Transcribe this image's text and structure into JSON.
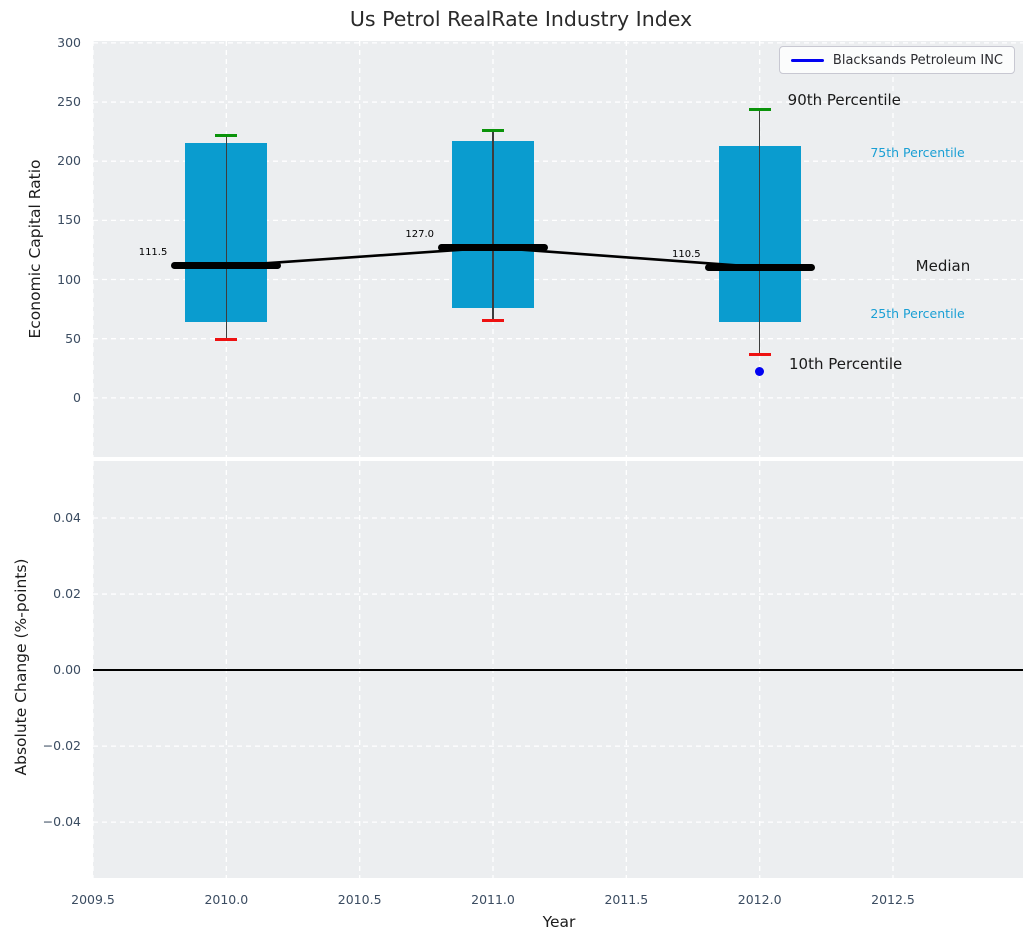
{
  "figure": {
    "title": "Us Petrol RealRate Industry Index",
    "colors": {
      "figure_bg": "#ffffff",
      "axes_bg": "#eceef0",
      "grid": "#ffffff",
      "tick_label": "#3b4c61",
      "axis_label": "#1c1c1c"
    }
  },
  "chart_data": [
    {
      "id": "economic-capital-ratio",
      "type": "box",
      "ylabel": "Economic Capital Ratio",
      "xlim": [
        2009.5,
        2012.9875
      ],
      "ylim": [
        -50,
        301.6
      ],
      "yticks": [
        300,
        250,
        200,
        150,
        100,
        50,
        0
      ],
      "ytick_labels": [
        "300",
        "250",
        "200",
        "150",
        "100",
        "50",
        "0"
      ],
      "xticks": [
        2009.5,
        2010.0,
        2010.5,
        2011.0,
        2011.5,
        2012.0,
        2012.5
      ],
      "grid": true,
      "colors": {
        "box_fill": "#0a9ccf",
        "whisker": "#3d3d3d",
        "cap_90th": "#0a930a",
        "cap_10th": "#ee1111",
        "median": "#000000",
        "company_point": "#0202f2",
        "annotation_primary": "#1a1a1a",
        "annotation_secondary": "#1a9fd4"
      },
      "boxes": [
        {
          "x": 2010,
          "p10": 49,
          "p25": 64,
          "median": 111.5,
          "p75": 215,
          "p90": 222,
          "median_label": "111.5"
        },
        {
          "x": 2011,
          "p10": 65,
          "p25": 76,
          "median": 127.0,
          "p75": 217,
          "p90": 226,
          "median_label": "127.0"
        },
        {
          "x": 2012,
          "p10": 37,
          "p25": 64,
          "median": 110.5,
          "p75": 213,
          "p90": 244,
          "median_label": "110.5"
        }
      ],
      "median_line": {
        "x": [
          2010,
          2011,
          2012
        ],
        "y": [
          111.5,
          127.0,
          110.5
        ],
        "color": "#000000"
      },
      "company_series": {
        "name": "Blacksands Petroleum INC",
        "points": [
          {
            "x": 2012,
            "y": 22
          }
        ]
      },
      "legend": {
        "position": "upper right",
        "entries": [
          {
            "label": "Blacksands Petroleum INC",
            "color": "#0202f2",
            "type": "line"
          }
        ]
      },
      "annotations": [
        {
          "text": "90th Percentile",
          "x": 2012.105,
          "y": 252,
          "color": "#1a1a1a",
          "size": 15
        },
        {
          "text": "75th Percentile",
          "x": 2012.415,
          "y": 207,
          "color": "#1a9fd4",
          "size": 12.5
        },
        {
          "text": "Median",
          "x": 2012.585,
          "y": 111.5,
          "color": "#1a1a1a",
          "size": 15
        },
        {
          "text": "25th Percentile",
          "x": 2012.415,
          "y": 70.5,
          "color": "#1a9fd4",
          "size": 12.5
        },
        {
          "text": "10th Percentile",
          "x": 2012.11,
          "y": 29,
          "color": "#1a1a1a",
          "size": 15
        }
      ]
    },
    {
      "id": "absolute-change",
      "type": "line",
      "ylabel": "Absolute Change (%-points)",
      "xlabel": "Year",
      "xlim": [
        2009.5,
        2012.9875
      ],
      "ylim": [
        -0.0547,
        0.055
      ],
      "yticks": [
        0.04,
        0.02,
        0.0,
        -0.02,
        -0.04
      ],
      "ytick_labels": [
        "0.04",
        "0.02",
        "0.00",
        "−0.02",
        "−0.04"
      ],
      "xticks": [
        2009.5,
        2010.0,
        2010.5,
        2011.0,
        2011.5,
        2012.0,
        2012.5
      ],
      "xtick_labels": [
        "2009.5",
        "2010.0",
        "2010.5",
        "2011.0",
        "2011.5",
        "2012.0",
        "2012.5"
      ],
      "grid": true,
      "hline": {
        "y": 0.0,
        "color": "#000000"
      }
    }
  ]
}
